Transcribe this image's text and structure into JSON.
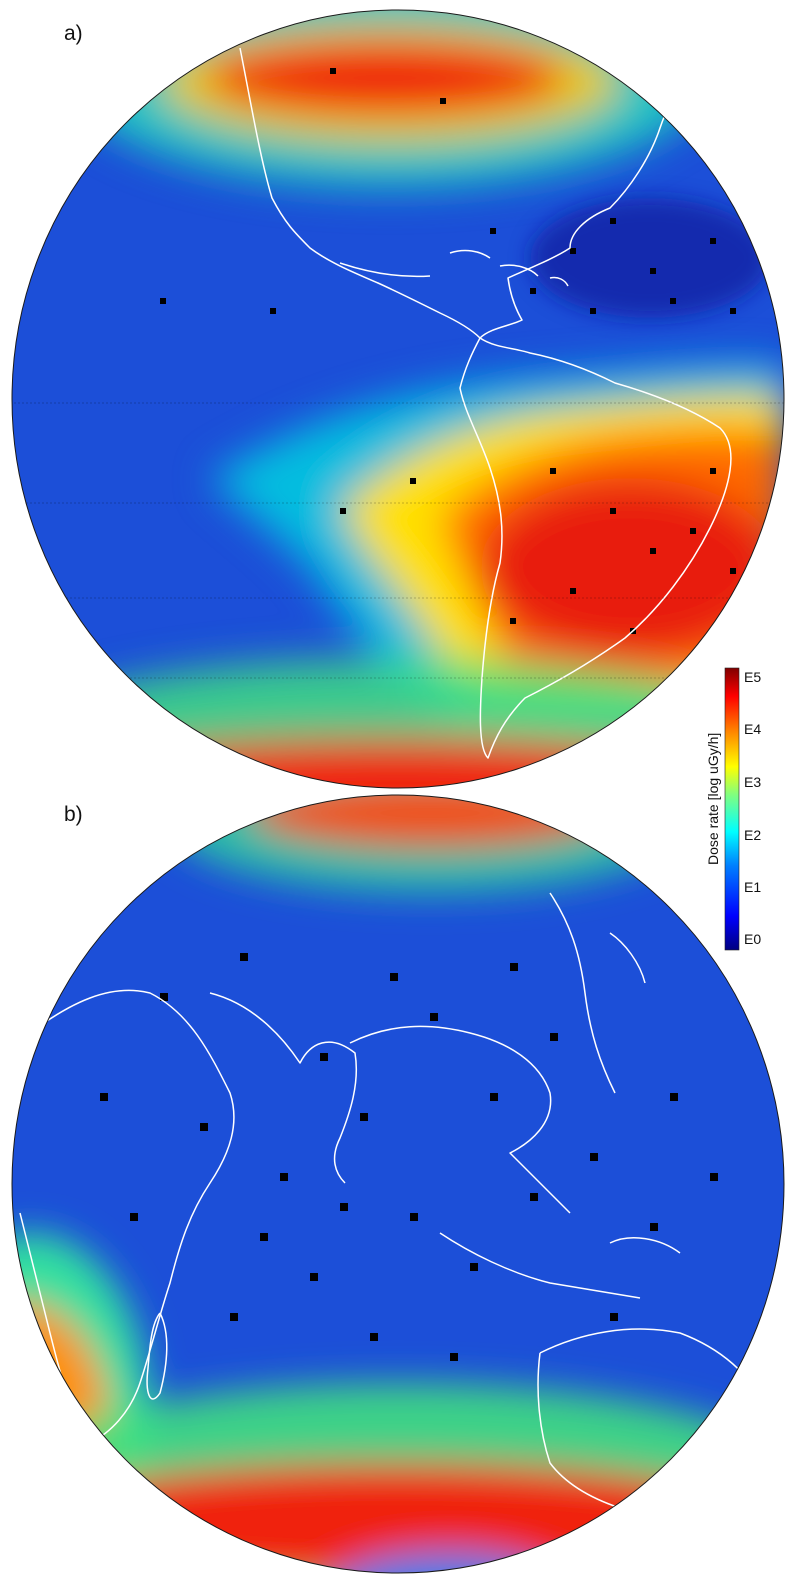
{
  "panels": [
    {
      "label": "a)",
      "view": "Americas and Atlantic hemisphere",
      "high_zones": [
        "northern polar belt",
        "South Atlantic Anomaly",
        "southern polar belt"
      ]
    },
    {
      "label": "b)",
      "view": "Africa, Indian Ocean and Asia-Pacific hemisphere",
      "high_zones": [
        "northern polar belt",
        "South Atlantic Anomaly edge",
        "southern polar belt"
      ]
    }
  ],
  "colorbar": {
    "title": "Dose rate [log uGy/h]",
    "ticks": [
      "E0",
      "E1",
      "E2",
      "E3",
      "E4",
      "E5"
    ],
    "colormap": [
      "#000080",
      "#0000ff",
      "#0080ff",
      "#00ffff",
      "#80ff80",
      "#ffff00",
      "#ff8000",
      "#ff0000",
      "#800000"
    ]
  },
  "colors": {
    "background_field": "#1c4fd8",
    "coastline": "#ffffff",
    "missing_data": "#000000"
  }
}
